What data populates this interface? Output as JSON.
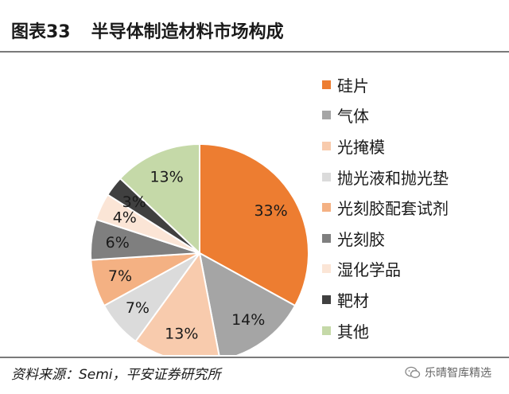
{
  "header": {
    "figure_no": "图表33",
    "title": "半导体制造材料市场构成"
  },
  "source": "资料来源：Semi，平安证券研究所",
  "watermark": "乐晴智库精选",
  "chart_data": {
    "type": "pie",
    "title": "半导体制造材料市场构成",
    "legend_position": "right",
    "slices": [
      {
        "label": "硅片",
        "value": 33,
        "value_label": "33%",
        "color": "#ED7D31",
        "text_color": "#1a1a1a"
      },
      {
        "label": "气体",
        "value": 14,
        "value_label": "14%",
        "color": "#A5A5A5",
        "text_color": "#1a1a1a"
      },
      {
        "label": "光掩模",
        "value": 13,
        "value_label": "13%",
        "color": "#F8CBAD",
        "text_color": "#1a1a1a"
      },
      {
        "label": "抛光液和抛光垫",
        "value": 7,
        "value_label": "7%",
        "color": "#DBDBDB",
        "text_color": "#1a1a1a"
      },
      {
        "label": "光刻胶配套试剂",
        "value": 7,
        "value_label": "7%",
        "color": "#F4B183",
        "text_color": "#1a1a1a"
      },
      {
        "label": "光刻胶",
        "value": 6,
        "value_label": "6%",
        "color": "#7F7F7F",
        "text_color": "#1a1a1a"
      },
      {
        "label": "湿化学品",
        "value": 4,
        "value_label": "4%",
        "color": "#FBE5D6",
        "text_color": "#1a1a1a"
      },
      {
        "label": "靶材",
        "value": 3,
        "value_label": "3%",
        "color": "#404040",
        "text_color": "#1a1a1a"
      },
      {
        "label": "其他",
        "value": 13,
        "value_label": "13%",
        "color": "#C5D9A8",
        "text_color": "#1a1a1a"
      }
    ]
  }
}
